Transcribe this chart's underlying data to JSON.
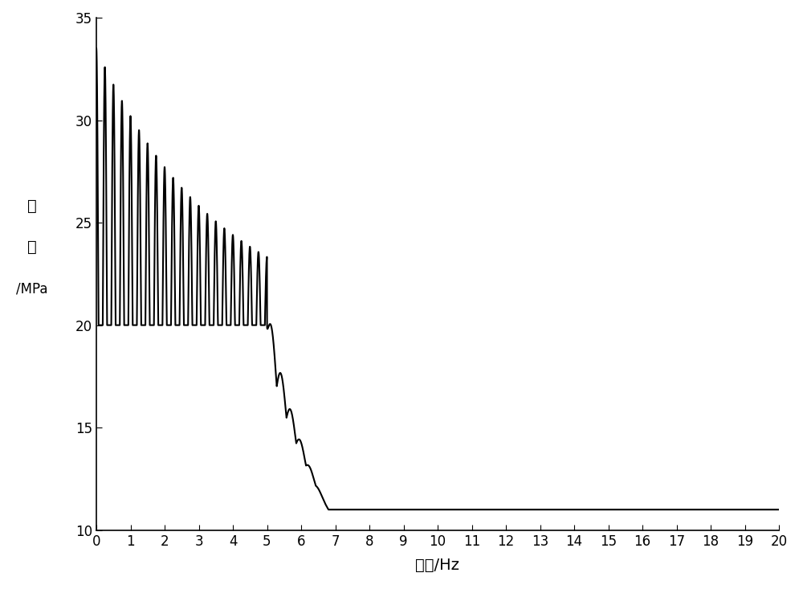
{
  "xlim": [
    0,
    20
  ],
  "ylim": [
    10,
    35
  ],
  "xticks": [
    0,
    1,
    2,
    3,
    4,
    5,
    6,
    7,
    8,
    9,
    10,
    11,
    12,
    13,
    14,
    15,
    16,
    17,
    18,
    19,
    20
  ],
  "yticks": [
    10,
    15,
    20,
    25,
    30,
    35
  ],
  "xlabel": "频率/Hz",
  "ylabel_line1": "压",
  "ylabel_line2": "力",
  "ylabel_line3": "/MPa",
  "line_color": "#000000",
  "line_width": 1.5,
  "background_color": "#ffffff",
  "base_pressure": 20.0,
  "flat_value": 11.0,
  "osc_cycles_per_hz": 4.0,
  "osc_end": 5.0,
  "decay_end": 6.8,
  "peak_initial": 13.5,
  "peak_decay_rate": 0.28,
  "transition_ripple_amp": 2.0,
  "transition_ripple_freq": 3.5
}
